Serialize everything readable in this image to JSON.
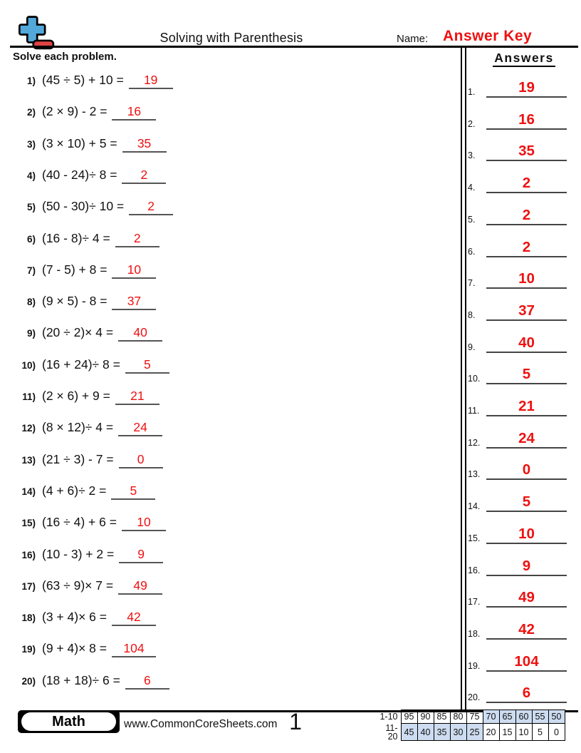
{
  "header": {
    "title": "Solving with Parenthesis",
    "name_label": "Name:",
    "name_value": "Answer Key",
    "logo": {
      "plus_icon_color": "#52a8d9",
      "minus_icon_color": "#e04343"
    }
  },
  "instructions": "Solve each problem.",
  "problems": [
    {
      "num": "1)",
      "expr": "(45 ÷ 5) + 10 =",
      "answer": "19"
    },
    {
      "num": "2)",
      "expr": "(2 × 9) - 2 =",
      "answer": "16"
    },
    {
      "num": "3)",
      "expr": "(3 × 10) + 5 =",
      "answer": "35"
    },
    {
      "num": "4)",
      "expr": "(40 - 24)÷ 8 =",
      "answer": "2"
    },
    {
      "num": "5)",
      "expr": "(50 - 30)÷ 10 =",
      "answer": "2"
    },
    {
      "num": "6)",
      "expr": "(16 - 8)÷ 4 =",
      "answer": "2"
    },
    {
      "num": "7)",
      "expr": "(7 - 5) + 8 =",
      "answer": "10"
    },
    {
      "num": "8)",
      "expr": "(9 × 5) - 8 =",
      "answer": "37"
    },
    {
      "num": "9)",
      "expr": "(20 ÷ 2)× 4 =",
      "answer": "40"
    },
    {
      "num": "10)",
      "expr": "(16 + 24)÷ 8 =",
      "answer": "5"
    },
    {
      "num": "11)",
      "expr": "(2 × 6) + 9 =",
      "answer": "21"
    },
    {
      "num": "12)",
      "expr": "(8 × 12)÷ 4 =",
      "answer": "24"
    },
    {
      "num": "13)",
      "expr": "(21 ÷ 3) - 7 =",
      "answer": "0"
    },
    {
      "num": "14)",
      "expr": "(4 + 6)÷ 2 =",
      "answer": "5"
    },
    {
      "num": "15)",
      "expr": "(16 ÷ 4) + 6 =",
      "answer": "10"
    },
    {
      "num": "16)",
      "expr": "(10 - 3) + 2 =",
      "answer": "9"
    },
    {
      "num": "17)",
      "expr": "(63 ÷ 9)× 7 =",
      "answer": "49"
    },
    {
      "num": "18)",
      "expr": "(3 + 4)× 6 =",
      "answer": "42"
    },
    {
      "num": "19)",
      "expr": "(9 + 4)× 8 =",
      "answer": "104"
    },
    {
      "num": "20)",
      "expr": "(18 + 18)÷ 6 =",
      "answer": "6"
    }
  ],
  "answers_panel": {
    "title": "Answers",
    "items": [
      {
        "num": "1.",
        "value": "19"
      },
      {
        "num": "2.",
        "value": "16"
      },
      {
        "num": "3.",
        "value": "35"
      },
      {
        "num": "4.",
        "value": "2"
      },
      {
        "num": "5.",
        "value": "2"
      },
      {
        "num": "6.",
        "value": "2"
      },
      {
        "num": "7.",
        "value": "10"
      },
      {
        "num": "8.",
        "value": "37"
      },
      {
        "num": "9.",
        "value": "40"
      },
      {
        "num": "10.",
        "value": "5"
      },
      {
        "num": "11.",
        "value": "21"
      },
      {
        "num": "12.",
        "value": "24"
      },
      {
        "num": "13.",
        "value": "0"
      },
      {
        "num": "14.",
        "value": "5"
      },
      {
        "num": "15.",
        "value": "10"
      },
      {
        "num": "16.",
        "value": "9"
      },
      {
        "num": "17.",
        "value": "49"
      },
      {
        "num": "18.",
        "value": "42"
      },
      {
        "num": "19.",
        "value": "104"
      },
      {
        "num": "20.",
        "value": "6"
      }
    ],
    "answer_color": "#ee1111"
  },
  "footer": {
    "subject_badge": "Math",
    "website": "www.CommonCoreSheets.com",
    "page_number": "1",
    "score_table": {
      "row_labels": [
        "1-10",
        "11-20"
      ],
      "rows": [
        [
          {
            "v": "95",
            "hl": false
          },
          {
            "v": "90",
            "hl": false
          },
          {
            "v": "85",
            "hl": false
          },
          {
            "v": "80",
            "hl": false
          },
          {
            "v": "75",
            "hl": false
          },
          {
            "v": "70",
            "hl": true
          },
          {
            "v": "65",
            "hl": true
          },
          {
            "v": "60",
            "hl": true
          },
          {
            "v": "55",
            "hl": true
          },
          {
            "v": "50",
            "hl": true
          }
        ],
        [
          {
            "v": "45",
            "hl": true
          },
          {
            "v": "40",
            "hl": true
          },
          {
            "v": "35",
            "hl": true
          },
          {
            "v": "30",
            "hl": true
          },
          {
            "v": "25",
            "hl": true
          },
          {
            "v": "20",
            "hl": false
          },
          {
            "v": "15",
            "hl": false
          },
          {
            "v": "10",
            "hl": false
          },
          {
            "v": "5",
            "hl": false
          },
          {
            "v": "0",
            "hl": false
          }
        ]
      ],
      "highlight_color": "#cddcf0"
    }
  }
}
